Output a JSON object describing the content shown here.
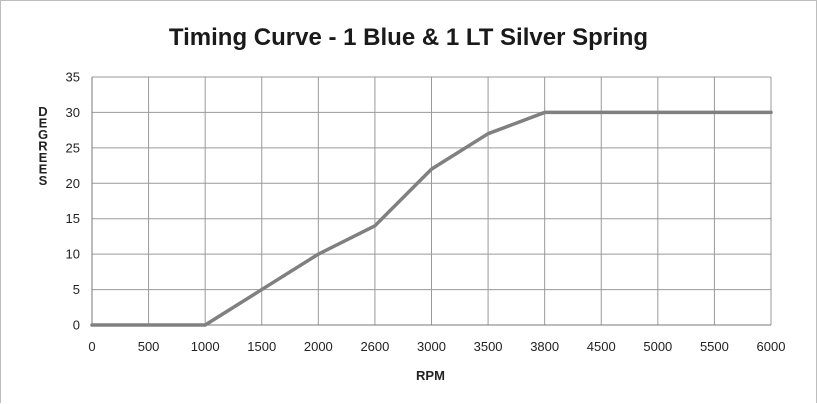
{
  "chart_data": {
    "type": "line",
    "title": "Timing Curve - 1 Blue & 1 LT Silver Spring",
    "xlabel": "RPM",
    "ylabel": "DEGREES",
    "categories": [
      "0",
      "500",
      "1000",
      "1500",
      "2000",
      "2600",
      "3000",
      "3500",
      "3800",
      "4500",
      "5000",
      "5500",
      "6000"
    ],
    "series": [
      {
        "values": [
          0,
          0,
          0,
          5,
          10,
          14,
          22,
          27,
          30,
          30,
          30,
          30,
          30
        ]
      }
    ],
    "ylim": [
      0,
      35
    ],
    "yticks": [
      0,
      5,
      10,
      15,
      20,
      25,
      30,
      35
    ],
    "grid": true,
    "colors": {
      "line": "#808080",
      "grid": "#9a9a9a"
    }
  }
}
